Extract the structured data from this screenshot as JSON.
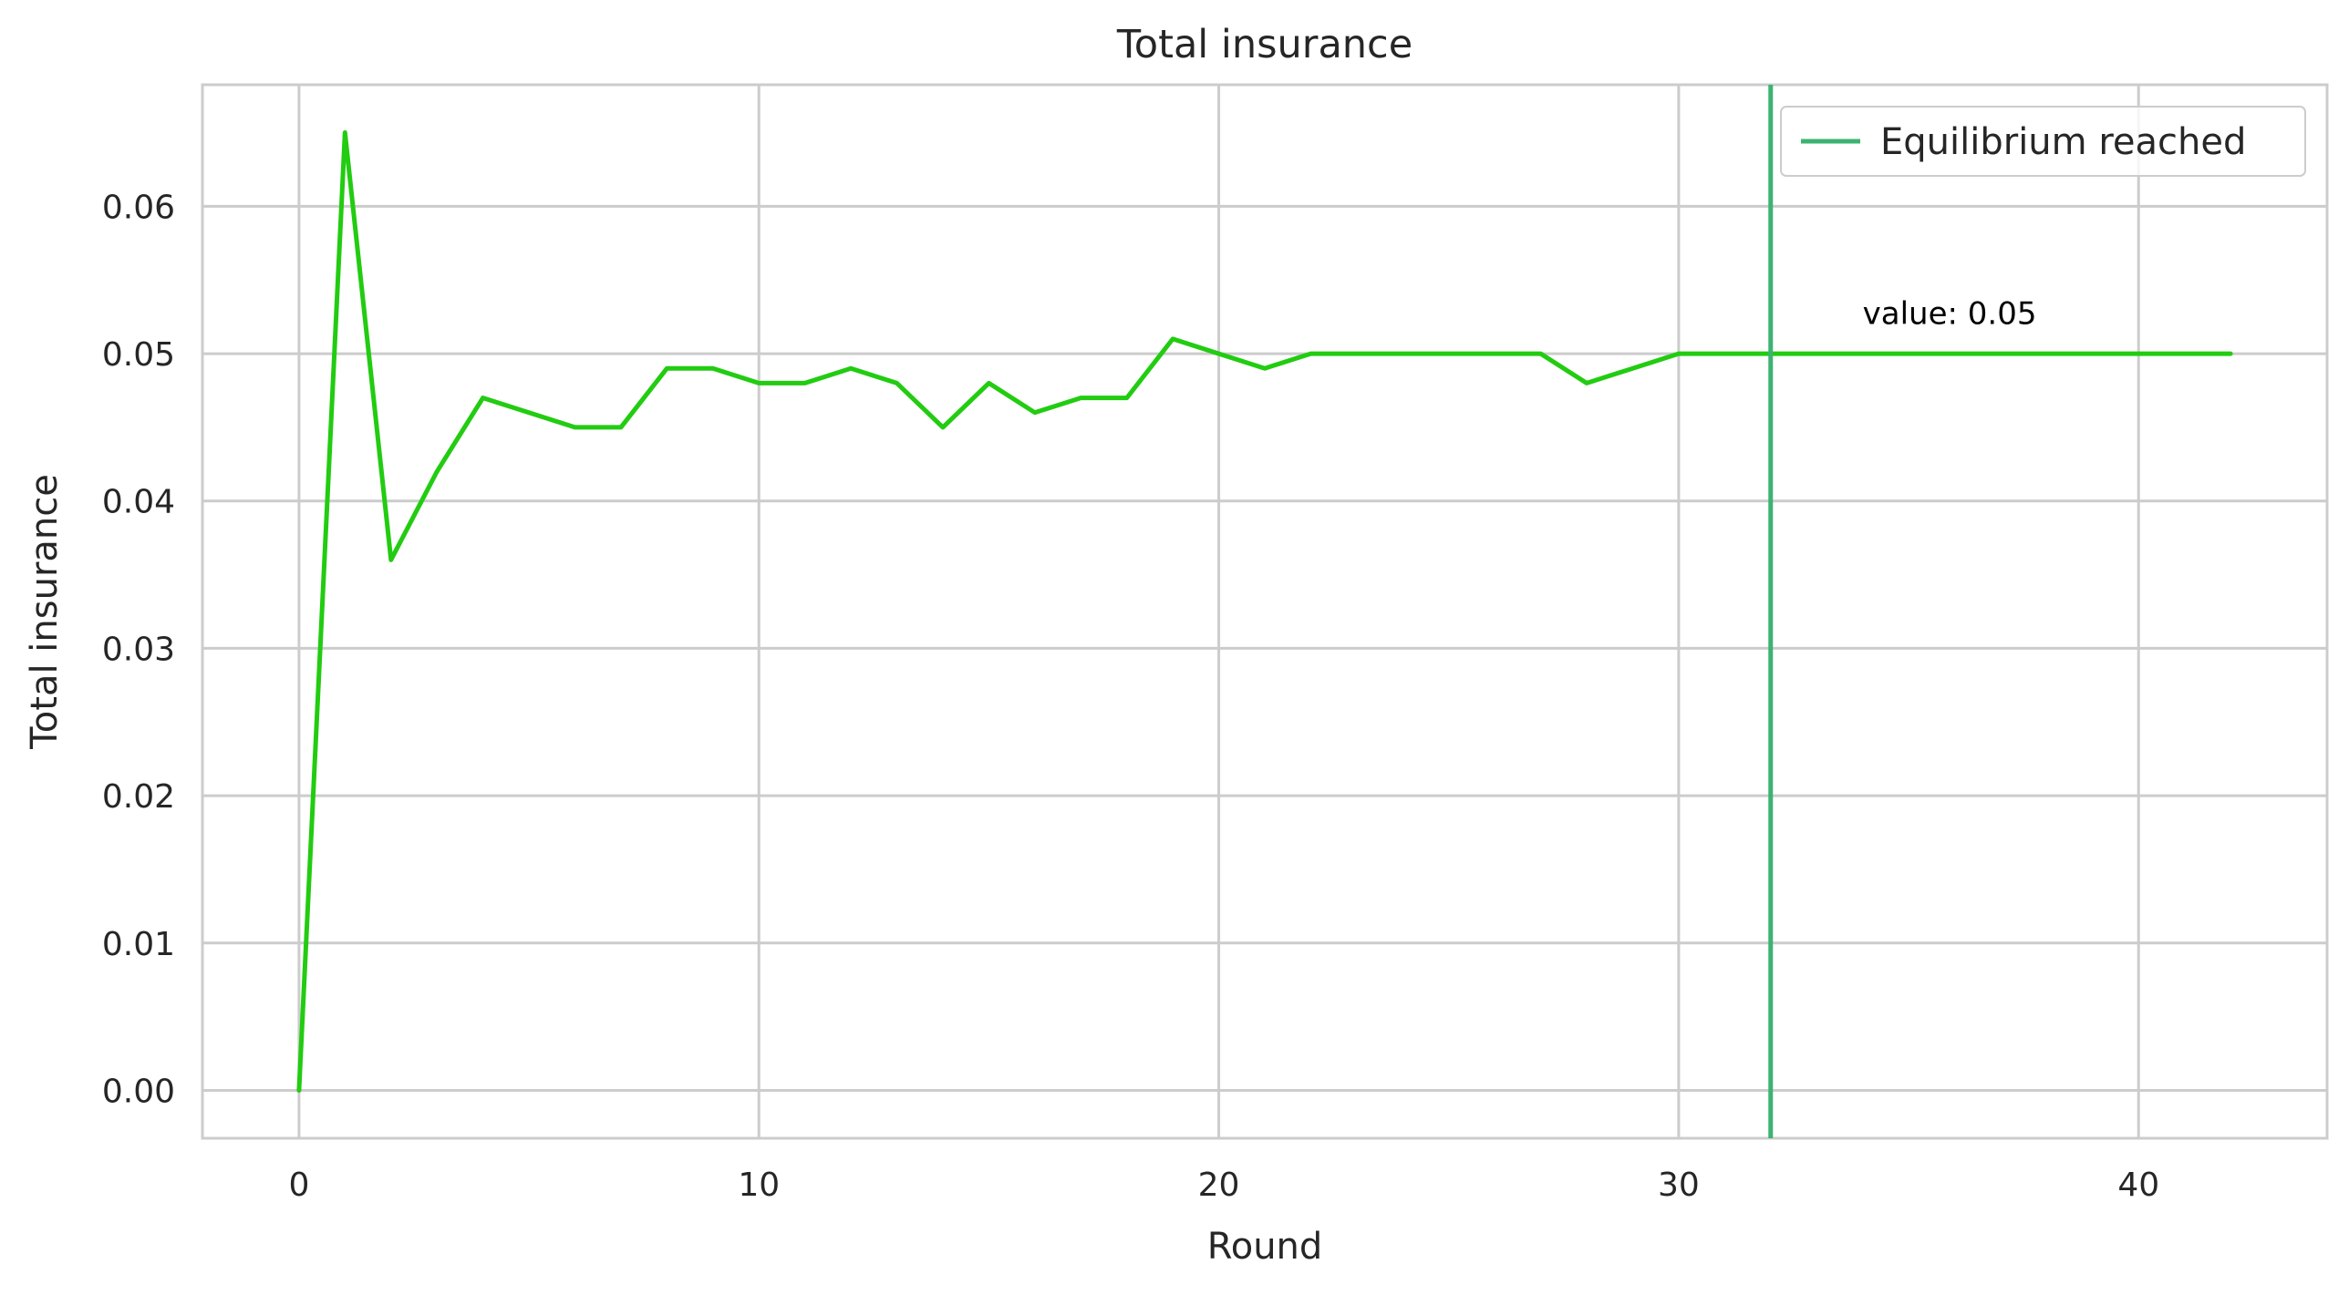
{
  "chart_data": {
    "type": "line",
    "title": "Total insurance",
    "xlabel": "Round",
    "ylabel": "Total insurance",
    "xlim": [
      -2.1,
      44.1
    ],
    "ylim": [
      -0.00325,
      0.06825
    ],
    "xticks": [
      0,
      10,
      20,
      30,
      40
    ],
    "xtick_labels": [
      "0",
      "10",
      "20",
      "30",
      "40"
    ],
    "yticks": [
      0.0,
      0.01,
      0.02,
      0.03,
      0.04,
      0.05,
      0.06
    ],
    "ytick_labels": [
      "0.00",
      "0.01",
      "0.02",
      "0.03",
      "0.04",
      "0.05",
      "0.06"
    ],
    "grid": true,
    "series": [
      {
        "color": "#22cc11",
        "x": [
          0,
          1,
          2,
          3,
          4,
          5,
          6,
          7,
          8,
          9,
          10,
          11,
          12,
          13,
          14,
          15,
          16,
          17,
          18,
          19,
          20,
          21,
          22,
          23,
          24,
          25,
          26,
          27,
          28,
          29,
          30,
          31,
          32,
          33,
          34,
          35,
          36,
          37,
          38,
          39,
          40,
          41,
          42
        ],
        "y": [
          0.0,
          0.065,
          0.036,
          0.042,
          0.047,
          0.046,
          0.045,
          0.045,
          0.049,
          0.049,
          0.048,
          0.048,
          0.049,
          0.048,
          0.045,
          0.048,
          0.046,
          0.047,
          0.047,
          0.051,
          0.05,
          0.049,
          0.05,
          0.05,
          0.05,
          0.05,
          0.05,
          0.05,
          0.048,
          0.049,
          0.05,
          0.05,
          0.05,
          0.05,
          0.05,
          0.05,
          0.05,
          0.05,
          0.05,
          0.05,
          0.05,
          0.05,
          0.05
        ]
      }
    ],
    "vline": {
      "x": 32,
      "label": "Equilibrium reached",
      "color": "#3cb371"
    },
    "annotation": {
      "text": "value: 0.05",
      "x": 34,
      "y": 0.052
    },
    "legend": {
      "position": "top-right",
      "entries": [
        "Equilibrium reached"
      ]
    }
  }
}
